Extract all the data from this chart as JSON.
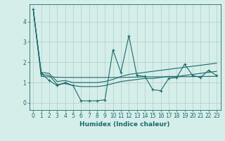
{
  "xlabel": "Humidex (Indice chaleur)",
  "bg_color": "#d6eeea",
  "grid_color": "#b0cec8",
  "line_color": "#1a6b6b",
  "xlim": [
    -0.5,
    23.5
  ],
  "ylim": [
    -0.35,
    4.85
  ],
  "yticks": [
    0,
    1,
    2,
    3,
    4
  ],
  "xticks": [
    0,
    1,
    2,
    3,
    4,
    5,
    6,
    7,
    8,
    9,
    10,
    11,
    12,
    13,
    14,
    15,
    16,
    17,
    18,
    19,
    20,
    21,
    22,
    23
  ],
  "series_main": [
    4.6,
    1.45,
    1.1,
    0.85,
    1.0,
    0.85,
    0.1,
    0.1,
    0.1,
    0.15,
    2.6,
    1.5,
    3.3,
    1.35,
    1.3,
    0.65,
    0.6,
    1.2,
    1.25,
    1.9,
    1.35,
    1.25,
    1.6,
    1.35
  ],
  "series_upper": [
    4.6,
    1.5,
    1.45,
    1.05,
    1.1,
    1.0,
    1.0,
    1.0,
    1.0,
    1.05,
    1.15,
    1.3,
    1.4,
    1.45,
    1.5,
    1.55,
    1.6,
    1.65,
    1.7,
    1.75,
    1.8,
    1.85,
    1.9,
    1.95
  ],
  "series_mean": [
    4.6,
    1.3,
    1.28,
    1.26,
    1.25,
    1.25,
    1.25,
    1.25,
    1.25,
    1.25,
    1.25,
    1.25,
    1.26,
    1.27,
    1.28,
    1.28,
    1.28,
    1.28,
    1.28,
    1.29,
    1.29,
    1.3,
    1.3,
    1.31
  ],
  "series_lower": [
    4.6,
    1.4,
    1.35,
    0.9,
    0.95,
    0.85,
    0.8,
    0.8,
    0.8,
    0.85,
    0.95,
    1.05,
    1.1,
    1.15,
    1.2,
    1.2,
    1.25,
    1.3,
    1.3,
    1.35,
    1.4,
    1.45,
    1.5,
    1.55
  ]
}
